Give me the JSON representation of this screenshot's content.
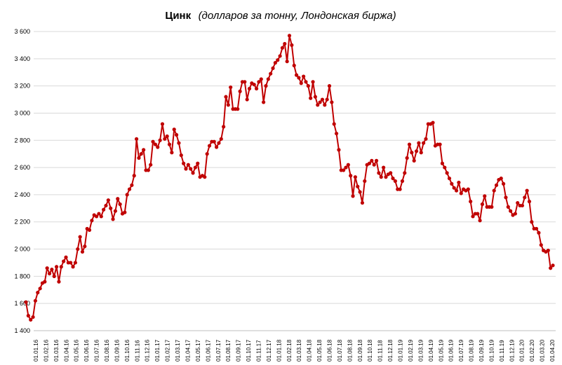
{
  "chart_data": {
    "type": "line",
    "title": "Цинк",
    "subtitle": "(долларов за тонну, Лондонская биржа)",
    "xlabel": "",
    "ylabel": "",
    "ylim": [
      1400,
      3600
    ],
    "yticks": [
      "1 400",
      "1 600",
      "1 800",
      "2 000",
      "2 200",
      "2 400",
      "2 600",
      "2 800",
      "3 000",
      "3 200",
      "3 400",
      "3 600"
    ],
    "ytick_values": [
      1400,
      1600,
      1800,
      2000,
      2200,
      2400,
      2600,
      2800,
      3000,
      3200,
      3400,
      3600
    ],
    "xticks": [
      "01.01.16",
      "01.02.16",
      "01.03.16",
      "01.04.16",
      "01.05.16",
      "01.06.16",
      "01.07.16",
      "01.08.16",
      "01.09.16",
      "01.10.16",
      "01.11.16",
      "01.12.16",
      "01.01.17",
      "01.02.17",
      "01.03.17",
      "01.04.17",
      "01.05.17",
      "01.06.17",
      "01.07.17",
      "01.08.17",
      "01.09.17",
      "01.10.17",
      "01.11.17",
      "01.12.17",
      "01.01.18",
      "01.02.18",
      "01.03.18",
      "01.04.18",
      "01.05.18",
      "01.06.18",
      "01.07.18",
      "01.08.18",
      "01.09.18",
      "01.10.18",
      "01.11.18",
      "01.12.18",
      "01.01.19",
      "01.02.19",
      "01.03.19",
      "01.04.19",
      "01.05.19",
      "01.06.19",
      "01.07.19",
      "01.08.19",
      "01.09.19",
      "01.10.19",
      "01.11.19",
      "01.12.19",
      "01.01.20",
      "01.02.20",
      "01.03.20",
      "01.04.20"
    ],
    "grid": "horizontal",
    "series": [
      {
        "name": "",
        "color": "#c00000",
        "values": [
          1610,
          1510,
          1480,
          1500,
          1620,
          1680,
          1710,
          1750,
          1760,
          1860,
          1820,
          1850,
          1800,
          1870,
          1760,
          1870,
          1910,
          1940,
          1900,
          1900,
          1870,
          1900,
          2000,
          2090,
          1980,
          2020,
          2150,
          2140,
          2210,
          2250,
          2240,
          2260,
          2240,
          2290,
          2320,
          2360,
          2300,
          2220,
          2280,
          2370,
          2330,
          2260,
          2270,
          2400,
          2440,
          2470,
          2540,
          2810,
          2670,
          2700,
          2730,
          2580,
          2580,
          2620,
          2790,
          2770,
          2750,
          2800,
          2920,
          2810,
          2830,
          2770,
          2710,
          2880,
          2840,
          2780,
          2690,
          2630,
          2590,
          2620,
          2590,
          2560,
          2600,
          2630,
          2530,
          2540,
          2530,
          2700,
          2760,
          2790,
          2790,
          2750,
          2780,
          2810,
          2900,
          3120,
          3060,
          3190,
          3030,
          3030,
          3030,
          3160,
          3230,
          3230,
          3100,
          3180,
          3220,
          3210,
          3180,
          3230,
          3250,
          3080,
          3200,
          3250,
          3290,
          3330,
          3370,
          3390,
          3420,
          3480,
          3510,
          3380,
          3570,
          3500,
          3350,
          3280,
          3260,
          3220,
          3270,
          3230,
          3200,
          3110,
          3230,
          3120,
          3060,
          3080,
          3100,
          3060,
          3100,
          3200,
          3080,
          2920,
          2850,
          2730,
          2580,
          2580,
          2600,
          2620,
          2540,
          2390,
          2530,
          2460,
          2420,
          2340,
          2500,
          2620,
          2630,
          2650,
          2620,
          2650,
          2560,
          2530,
          2600,
          2530,
          2550,
          2560,
          2520,
          2500,
          2440,
          2440,
          2500,
          2560,
          2670,
          2770,
          2710,
          2650,
          2720,
          2780,
          2710,
          2780,
          2810,
          2920,
          2920,
          2930,
          2760,
          2770,
          2770,
          2630,
          2600,
          2560,
          2520,
          2480,
          2450,
          2430,
          2490,
          2410,
          2440,
          2430,
          2440,
          2350,
          2240,
          2260,
          2260,
          2210,
          2330,
          2390,
          2310,
          2310,
          2310,
          2430,
          2470,
          2510,
          2520,
          2480,
          2380,
          2310,
          2280,
          2250,
          2260,
          2340,
          2320,
          2320,
          2380,
          2430,
          2350,
          2200,
          2150,
          2150,
          2120,
          2030,
          1990,
          1980,
          1990,
          1860,
          1880
        ]
      }
    ]
  }
}
